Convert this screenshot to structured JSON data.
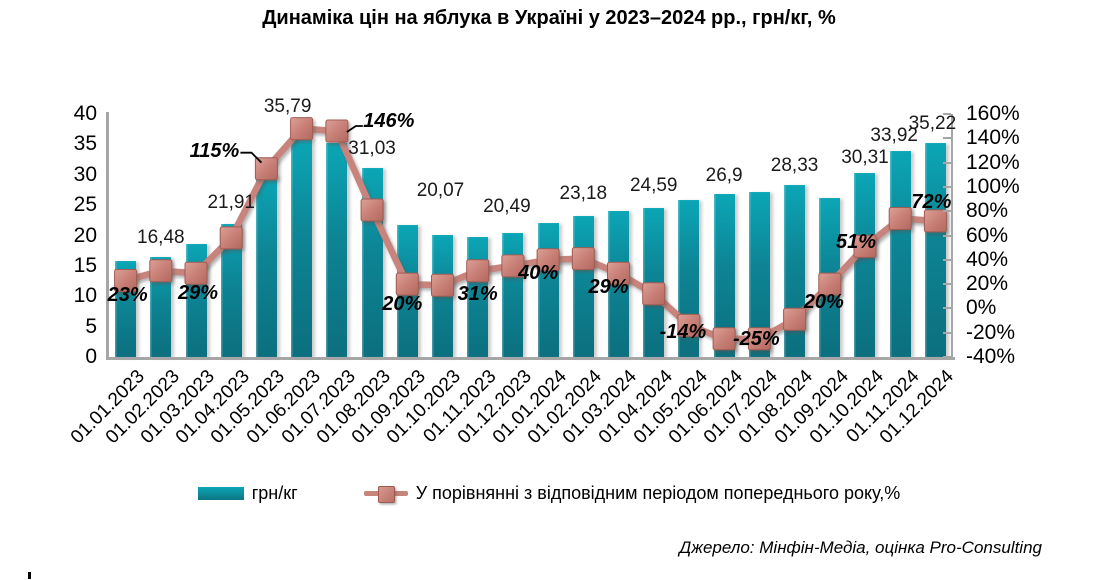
{
  "title": "Динаміка цін на яблука в Україні у 2023–2024 рр., грн/кг, %",
  "source": "Джерело: Мінфін-Медіа, оцінка Pro-Consulting",
  "legend": {
    "bar_label": "грн/кг",
    "line_label": "У порівнянні з відповідним періодом попереднього року,%"
  },
  "left_axis": {
    "ticks": [
      40,
      35,
      30,
      25,
      20,
      15,
      10,
      5,
      0
    ],
    "min": 0,
    "max": 40
  },
  "right_axis": {
    "ticks": [
      "160%",
      "140%",
      "120%",
      "100%",
      "80%",
      "60%",
      "40%",
      "20%",
      "0%",
      "-20%",
      "-40%"
    ],
    "min": -40,
    "max": 160
  },
  "colors": {
    "bar_top": "#0BA6B6",
    "bar_bottom": "#0C6F7E",
    "line": "#C8837B",
    "marker_border": "#A05C53",
    "axis": "#A6A6A6",
    "text": "#000000"
  },
  "chart_data": {
    "type": "bar+line",
    "title": "Динаміка цін на яблука в Україні у 2023–2024 рр., грн/кг, %",
    "categories": [
      "01.01.2023",
      "01.02.2023",
      "01.03.2023",
      "01.04.2023",
      "01.05.2023",
      "01.06.2023",
      "01.07.2023",
      "01.08.2023",
      "01.09.2023",
      "01.10.2023",
      "01.11.2023",
      "01.12.2023",
      "01.01.2024",
      "01.02.2024",
      "01.03.2024",
      "01.04.2024",
      "01.05.2024",
      "01.06.2024",
      "01.07.2024",
      "01.08.2024",
      "01.09.2024",
      "01.10.2024",
      "01.11.2024",
      "01.12.2024"
    ],
    "series": [
      {
        "name": "грн/кг",
        "type": "bar",
        "axis": "left",
        "color": "#0D8494",
        "values": [
          15.8,
          16.48,
          18.6,
          21.91,
          30.0,
          35.79,
          35.3,
          31.03,
          21.8,
          20.07,
          19.7,
          20.49,
          22.1,
          23.18,
          24.0,
          24.59,
          25.8,
          26.9,
          27.2,
          28.33,
          26.2,
          30.31,
          33.92,
          35.22
        ],
        "data_labels": [
          null,
          "16,48",
          null,
          "21,91",
          null,
          "35,79",
          null,
          "31,03",
          null,
          "20,07",
          null,
          "20,49",
          null,
          "23,18",
          null,
          "24,59",
          null,
          "26,9",
          null,
          "28,33",
          null,
          "30,31",
          "33,92",
          "35,22"
        ]
      },
      {
        "name": "У порівнянні з відповідним періодом попереднього року,%",
        "type": "line",
        "axis": "right",
        "color": "#C8837B",
        "values": [
          23,
          31,
          29,
          58,
          115,
          148,
          146,
          81,
          20,
          19,
          31,
          35,
          40,
          41,
          29,
          12,
          -14,
          -25,
          -25,
          -9,
          20,
          51,
          74,
          72
        ],
        "data_labels": [
          "23%",
          null,
          "29%",
          null,
          "115%",
          null,
          "146%",
          null,
          "20%",
          null,
          "31%",
          null,
          "40%",
          null,
          "29%",
          null,
          "-14%",
          null,
          "-25%",
          null,
          "20%",
          "51%",
          null,
          "72%"
        ]
      }
    ],
    "left_axis_range": [
      0,
      40
    ],
    "right_axis_range": [
      -40,
      160
    ],
    "gridlines": false,
    "legend_position": "bottom"
  }
}
